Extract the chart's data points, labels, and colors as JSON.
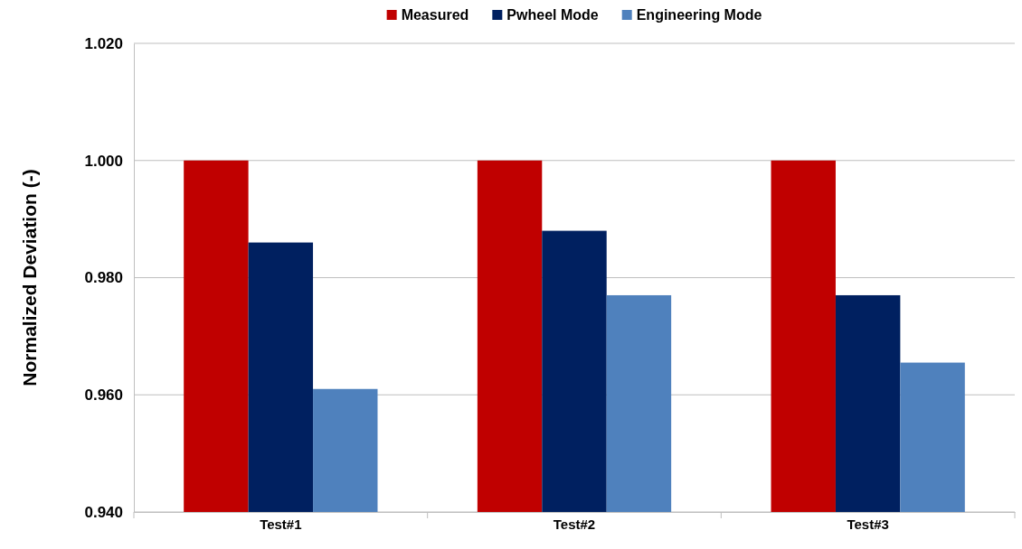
{
  "chart_data": {
    "type": "bar",
    "ylabel": "Normalized Deviation (-)",
    "categories": [
      "Test#1",
      "Test#2",
      "Test#3"
    ],
    "series": [
      {
        "name": "Measured",
        "color": "#c00000",
        "values": [
          1.0,
          1.0,
          1.0
        ]
      },
      {
        "name": "Pwheel Mode",
        "color": "#002060",
        "values": [
          0.986,
          0.988,
          0.977
        ]
      },
      {
        "name": "Engineering Mode",
        "color": "#4f81bd",
        "values": [
          0.961,
          0.977,
          0.9655
        ]
      }
    ],
    "ylim": [
      0.94,
      1.02
    ],
    "yticks": [
      {
        "value": 0.94,
        "label": "0.940"
      },
      {
        "value": 0.96,
        "label": "0.960"
      },
      {
        "value": 0.98,
        "label": "0.980"
      },
      {
        "value": 1.0,
        "label": "1.000"
      },
      {
        "value": 1.02,
        "label": "1.020"
      }
    ],
    "grid": "y",
    "legend": "top"
  }
}
